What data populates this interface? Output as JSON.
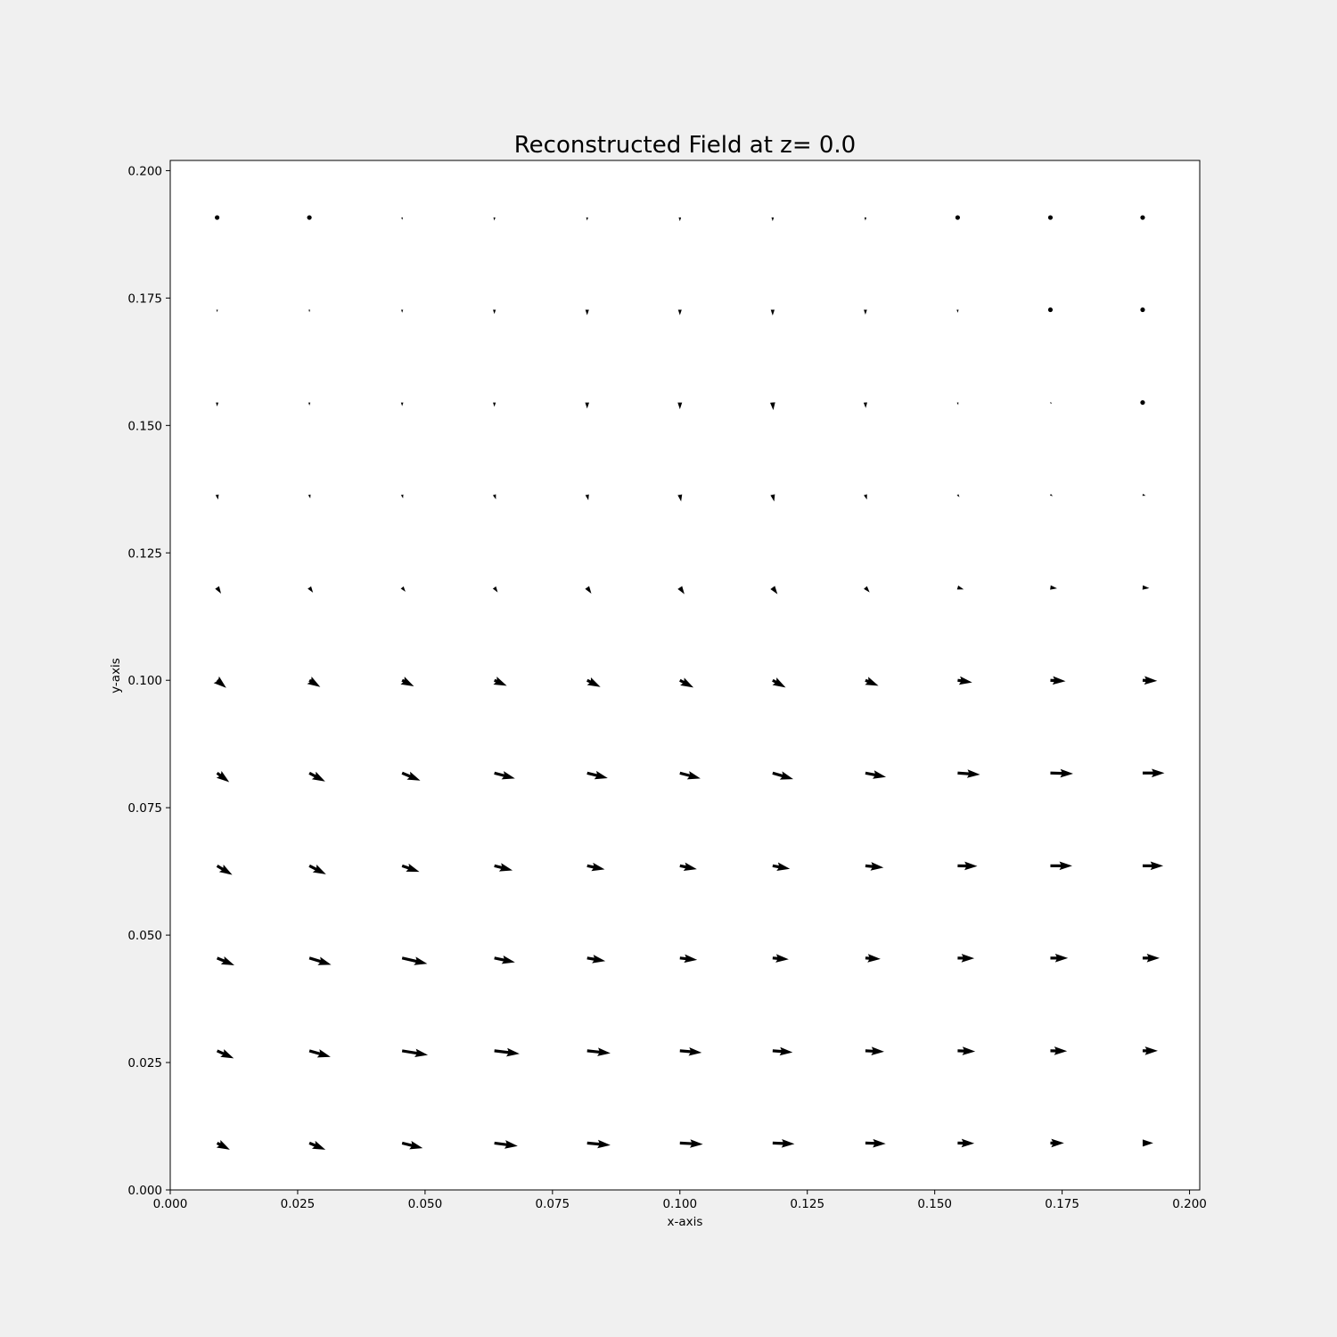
{
  "chart_data": {
    "type": "quiver",
    "title": "Reconstructed Field at z= 0.0",
    "xlabel": "x-axis",
    "ylabel": "y-axis",
    "xlim": [
      0.0,
      0.202
    ],
    "ylim": [
      0.0,
      0.202
    ],
    "xticks": [
      0.0,
      0.025,
      0.05,
      0.075,
      0.1,
      0.125,
      0.15,
      0.175,
      0.2
    ],
    "xtick_labels": [
      "0.000",
      "0.025",
      "0.050",
      "0.075",
      "0.100",
      "0.125",
      "0.150",
      "0.175",
      "0.200"
    ],
    "yticks": [
      0.0,
      0.025,
      0.05,
      0.075,
      0.1,
      0.125,
      0.15,
      0.175,
      0.2
    ],
    "ytick_labels": [
      "0.000",
      "0.025",
      "0.050",
      "0.075",
      "0.100",
      "0.125",
      "0.150",
      "0.175",
      "0.200"
    ],
    "grid": false,
    "arrow_color": "#000000",
    "x": [
      0.0092,
      0.0273,
      0.0455,
      0.0636,
      0.0818,
      0.1,
      0.1182,
      0.1364,
      0.1545,
      0.1727,
      0.1908
    ],
    "y": [
      0.0092,
      0.0273,
      0.0455,
      0.0636,
      0.0818,
      0.1,
      0.1182,
      0.1364,
      0.1545,
      0.1727,
      0.1908
    ],
    "u": [
      [
        0.42,
        0.53,
        0.68,
        0.77,
        0.77,
        0.76,
        0.72,
        0.67,
        0.55,
        0.45,
        0.35
      ],
      [
        0.55,
        0.7,
        0.85,
        0.83,
        0.77,
        0.72,
        0.66,
        0.62,
        0.58,
        0.55,
        0.5
      ],
      [
        0.57,
        0.72,
        0.83,
        0.68,
        0.6,
        0.57,
        0.53,
        0.5,
        0.55,
        0.58,
        0.56
      ],
      [
        0.5,
        0.55,
        0.57,
        0.6,
        0.58,
        0.56,
        0.57,
        0.6,
        0.65,
        0.72,
        0.68
      ],
      [
        0.4,
        0.52,
        0.6,
        0.68,
        0.68,
        0.68,
        0.68,
        0.68,
        0.74,
        0.75,
        0.72
      ],
      [
        0.3,
        0.36,
        0.39,
        0.41,
        0.44,
        0.45,
        0.43,
        0.43,
        0.48,
        0.5,
        0.48
      ],
      [
        0.13,
        0.12,
        0.11,
        0.11,
        0.14,
        0.15,
        0.16,
        0.14,
        0.2,
        0.22,
        0.22
      ],
      [
        0.03,
        0.03,
        0.03,
        0.05,
        0.04,
        0.04,
        0.05,
        0.05,
        0.06,
        0.08,
        0.1
      ],
      [
        0.0,
        0.0,
        0.0,
        0.0,
        0.0,
        0.0,
        0.02,
        0.01,
        0.02,
        0.05,
        0.0
      ],
      [
        0.0,
        0.0,
        0.0,
        0.0,
        0.0,
        0.0,
        0.0,
        0.0,
        0.0,
        0.0,
        0.0
      ],
      [
        0.05,
        0.0,
        0.0,
        0.0,
        0.0,
        0.0,
        0.0,
        0.0,
        0.0,
        0.0,
        0.0
      ]
    ],
    "v": [
      [
        -0.22,
        -0.22,
        -0.17,
        -0.1,
        -0.07,
        -0.04,
        -0.03,
        -0.02,
        -0.01,
        0.0,
        0.0
      ],
      [
        -0.25,
        -0.2,
        -0.14,
        -0.1,
        -0.08,
        -0.06,
        -0.05,
        -0.03,
        -0.02,
        -0.01,
        0.0
      ],
      [
        -0.24,
        -0.22,
        -0.19,
        -0.14,
        -0.1,
        -0.06,
        -0.04,
        -0.03,
        -0.01,
        0.0,
        0.0
      ],
      [
        -0.3,
        -0.28,
        -0.2,
        -0.15,
        -0.12,
        -0.11,
        -0.1,
        -0.06,
        -0.01,
        0.0,
        0.0
      ],
      [
        -0.3,
        -0.28,
        -0.25,
        -0.18,
        -0.17,
        -0.18,
        -0.2,
        -0.13,
        -0.05,
        -0.02,
        0.0
      ],
      [
        -0.25,
        -0.22,
        -0.2,
        -0.18,
        -0.22,
        -0.24,
        -0.24,
        -0.18,
        -0.07,
        -0.03,
        -0.02
      ],
      [
        -0.2,
        -0.17,
        -0.14,
        -0.16,
        -0.2,
        -0.22,
        -0.22,
        -0.16,
        -0.06,
        -0.03,
        -0.02
      ],
      [
        -0.16,
        -0.12,
        -0.12,
        -0.15,
        -0.18,
        -0.22,
        -0.22,
        -0.16,
        -0.08,
        -0.04,
        -0.03
      ],
      [
        -0.13,
        -0.1,
        -0.12,
        -0.14,
        -0.2,
        -0.22,
        -0.25,
        -0.18,
        -0.08,
        -0.04,
        0.0
      ],
      [
        -0.08,
        -0.08,
        -0.1,
        -0.14,
        -0.18,
        -0.18,
        -0.19,
        -0.16,
        -0.1,
        0.0,
        0.0
      ],
      [
        0.02,
        0.0,
        -0.08,
        -0.1,
        -0.1,
        -0.12,
        -0.12,
        -0.1,
        0.0,
        0.0,
        0.0
      ]
    ]
  }
}
